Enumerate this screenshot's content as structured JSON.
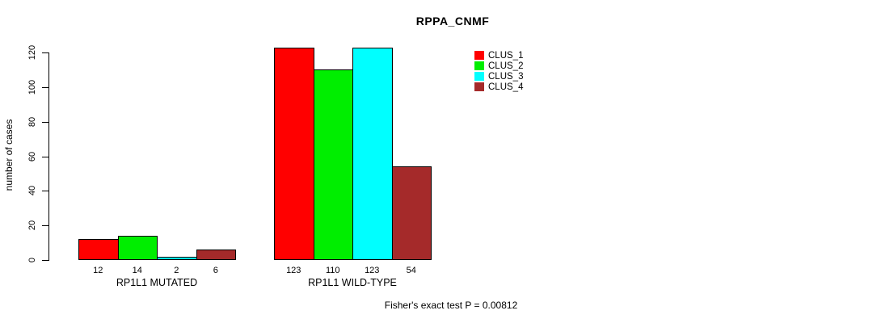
{
  "figure": {
    "title": "RPPA_CNMF",
    "ylabel": "number of cases",
    "caption": "Fisher's exact test P = 0.00812"
  },
  "chart_data": {
    "type": "bar",
    "title": "RPPA_CNMF",
    "ylabel": "number of cases",
    "xlabel": "",
    "categories": [
      "RP1L1 MUTATED",
      "RP1L1 WILD-TYPE"
    ],
    "series": [
      {
        "name": "CLUS_1",
        "color": "#FF0000",
        "values": [
          12,
          123
        ]
      },
      {
        "name": "CLUS_2",
        "color": "#00EE00",
        "values": [
          14,
          110
        ]
      },
      {
        "name": "CLUS_3",
        "color": "#00FFFF",
        "values": [
          2,
          123
        ]
      },
      {
        "name": "CLUS_4",
        "color": "#A52A2A",
        "values": [
          6,
          54
        ]
      }
    ],
    "yticks": [
      0,
      20,
      40,
      60,
      80,
      100,
      120
    ],
    "ylim": [
      0,
      123
    ],
    "grid": false,
    "bar_value_labels_shown": true,
    "legend_position": "top-right",
    "legend_entries": [
      "CLUS_1",
      "CLUS_2",
      "CLUS_3",
      "CLUS_4"
    ],
    "annotation": "Fisher's exact test P = 0.00812"
  }
}
